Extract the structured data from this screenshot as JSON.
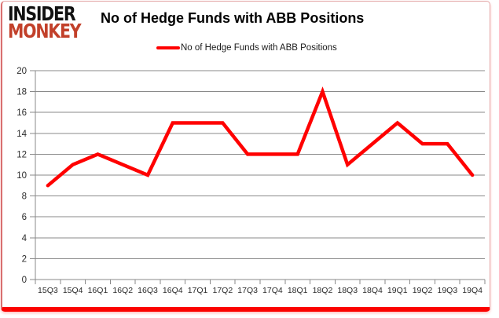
{
  "page": {
    "background_color": "#ffffff",
    "frame_border_color": "#e3a6a6",
    "frame_bottom_bar_color": "#fb0200"
  },
  "logo": {
    "line1": "INSIDER",
    "line2": "MONKEY",
    "line1_color": "#111111",
    "line2_color": "#c2402a"
  },
  "header": {
    "title": "No of Hedge Funds with ABB Positions"
  },
  "legend": {
    "label": "No of Hedge Funds with ABB Positions",
    "marker_color": "#ff0000"
  },
  "chart_data": {
    "type": "line",
    "title": "No of Hedge Funds with ABB Positions",
    "categories": [
      "15Q3",
      "15Q4",
      "16Q1",
      "16Q2",
      "16Q3",
      "16Q4",
      "17Q1",
      "17Q2",
      "17Q3",
      "17Q4",
      "18Q1",
      "18Q2",
      "18Q3",
      "18Q4",
      "19Q1",
      "19Q2",
      "19Q3",
      "19Q4"
    ],
    "series": [
      {
        "name": "No of Hedge Funds with ABB Positions",
        "color": "#ff0000",
        "values": [
          9,
          11,
          12,
          11,
          10,
          15,
          15,
          15,
          12,
          12,
          12,
          18,
          11,
          13,
          15,
          13,
          13,
          10
        ]
      }
    ],
    "xlabel": "",
    "ylabel": "",
    "ylim": [
      0,
      20
    ],
    "yticks": [
      0,
      2,
      4,
      6,
      8,
      10,
      12,
      14,
      16,
      18,
      20
    ],
    "grid": true,
    "gridline_color": "#8a8a8a",
    "axis_color": "#8a8a8a",
    "tick_label_color": "#2b2b2b",
    "legend_position": "top"
  }
}
